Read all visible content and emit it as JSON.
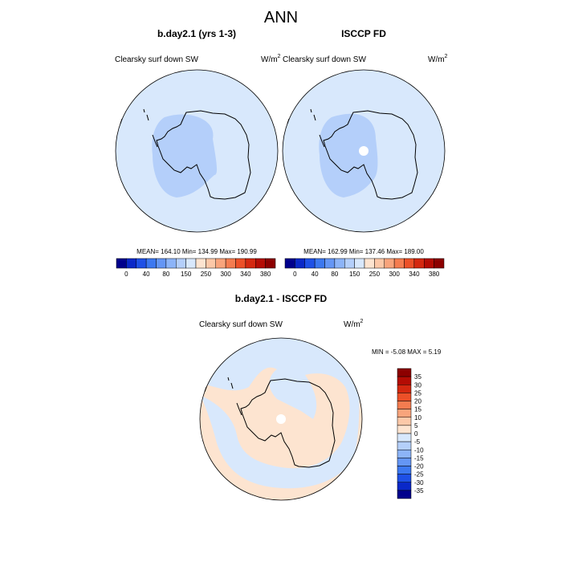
{
  "title": "ANN",
  "panels": [
    {
      "title": "b.day2.1 (yrs 1-3)",
      "variable": "Clearsky surf down SW",
      "unit": "W/m",
      "unit_sup": "2",
      "stats": "MEAN= 164.10  Min= 134.99  Max= 190.99"
    },
    {
      "title": "ISCCP FD",
      "variable": "Clearsky surf down SW",
      "unit": "W/m",
      "unit_sup": "2",
      "stats": "MEAN= 162.99  Min= 137.46  Max= 189.00"
    }
  ],
  "colorbar": {
    "labels": [
      "0",
      "40",
      "80",
      "150",
      "250",
      "300",
      "340",
      "380"
    ],
    "colors": [
      "#00008c",
      "#0a28c8",
      "#1e50e6",
      "#3c78f0",
      "#6496f5",
      "#8cb4f8",
      "#b4cffa",
      "#d8e8fc",
      "#fde4d0",
      "#fcc8a8",
      "#f8a47c",
      "#f47c50",
      "#ec5028",
      "#d42810",
      "#b40c04",
      "#8c0000"
    ]
  },
  "difference": {
    "title": "b.day2.1 - ISCCP FD",
    "variable": "Clearsky surf down SW",
    "unit": "W/m",
    "unit_sup": "2",
    "minmax": "MIN =  -5.08 MAX =   5.19",
    "colorbar_labels": [
      "35",
      "30",
      "25",
      "20",
      "15",
      "10",
      "5",
      "0",
      "-5",
      "-10",
      "-15",
      "-20",
      "-25",
      "-30",
      "-35"
    ],
    "colors": [
      "#8c0000",
      "#b40c04",
      "#d42810",
      "#ec5028",
      "#f47c50",
      "#f8a47c",
      "#fcc8a8",
      "#fde4d0",
      "#d8e8fc",
      "#b4cffa",
      "#8cb4f8",
      "#6496f5",
      "#3c78f0",
      "#1e50e6",
      "#0a28c8",
      "#00008c"
    ]
  }
}
